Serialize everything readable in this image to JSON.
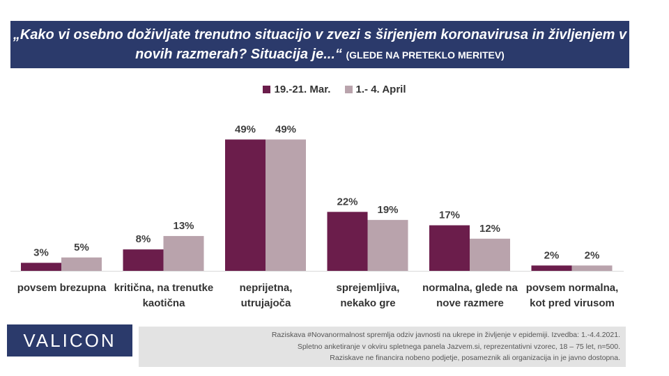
{
  "title": {
    "main": "„Kako vi osebno doživljate trenutno situacijo v zvezi s širjenjem koronavirusa in življenjem v novih razmerah? Situacija je...“",
    "note": "(GLEDE NA PRETEKLO MERITEV)"
  },
  "colors": {
    "series1": "#6b1d4b",
    "series2": "#b9a3ac",
    "title_bg": "#2b3a6b"
  },
  "chart_data": {
    "type": "bar",
    "categories": [
      "povsem brezupna",
      "kritična, na trenutke kaotična",
      "neprijetna, utrujajoča",
      "sprejemljiva, nekako gre",
      "normalna, glede na nove razmere",
      "povsem normalna, kot pred virusom"
    ],
    "series": [
      {
        "name": "19.-21. Mar.",
        "values": [
          3,
          8,
          49,
          22,
          17,
          2
        ],
        "labels": [
          "3%",
          "8%",
          "49%",
          "22%",
          "17%",
          "2%"
        ]
      },
      {
        "name": "1.- 4. April",
        "values": [
          5,
          13,
          49,
          19,
          12,
          2
        ],
        "labels": [
          "5%",
          "13%",
          "49%",
          "19%",
          "12%",
          "2%"
        ]
      }
    ],
    "ylim": [
      0,
      50
    ],
    "grid": false,
    "legend_position": "top"
  },
  "logo": "VALICON",
  "footnote": [
    "Raziskava #Novanormalnost spremlja odziv javnosti na ukrepe in življenje v epidemiji. Izvedba: 1.-4.4.2021.",
    "Spletno anketiranje v okviru spletnega panela Jazvem.si, reprezentativni vzorec, 18 – 75 let, n=500.",
    "Raziskave ne financira nobeno podjetje, posameznik ali organizacija in je javno dostopna."
  ]
}
